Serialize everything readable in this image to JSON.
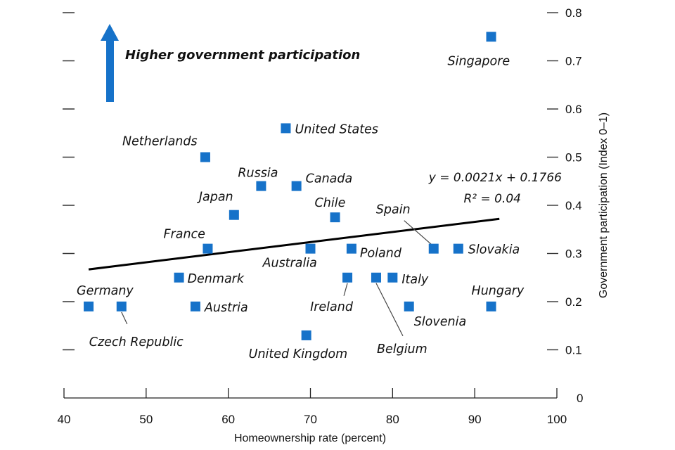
{
  "chart_data": {
    "type": "scatter",
    "title": "",
    "xlabel": "Homeownership rate (percent)",
    "ylabel": "Government participation (Index 0–1)",
    "xlim": [
      40,
      100
    ],
    "ylim": [
      0,
      0.8
    ],
    "x_ticks": [
      40,
      50,
      60,
      70,
      80,
      90,
      100
    ],
    "x_tick_labels": [
      "40",
      "50",
      "60",
      "70",
      "80",
      "90",
      "100"
    ],
    "y_ticks": [
      0,
      0.1,
      0.2,
      0.3,
      0.4,
      0.5,
      0.6,
      0.7,
      0.8
    ],
    "y_tick_labels": [
      "0",
      "0.1",
      "0.2",
      "0.3",
      "0.4",
      "0.5",
      "0.6",
      "0.7",
      "0.8"
    ],
    "y_axis_side": "right",
    "grid": false,
    "marker_color": "#1672c9",
    "arrow_color": "#1672c9",
    "annotation": "Higher government participation",
    "trendline": {
      "slope": 0.0021,
      "intercept": 0.1766,
      "x_range": [
        43,
        93
      ],
      "equation_label": "y = 0.0021x + 0.1766",
      "r2_label": "R² = 0.04"
    },
    "points": [
      {
        "name": "Singapore",
        "x": 92,
        "y": 0.75
      },
      {
        "name": "United States",
        "x": 67,
        "y": 0.56
      },
      {
        "name": "Netherlands",
        "x": 57.2,
        "y": 0.5
      },
      {
        "name": "Russia",
        "x": 64,
        "y": 0.44
      },
      {
        "name": "Canada",
        "x": 68.3,
        "y": 0.44
      },
      {
        "name": "Japan",
        "x": 60.7,
        "y": 0.38
      },
      {
        "name": "Chile",
        "x": 73,
        "y": 0.375
      },
      {
        "name": "France",
        "x": 57.5,
        "y": 0.31
      },
      {
        "name": "Australia",
        "x": 70,
        "y": 0.31
      },
      {
        "name": "Poland",
        "x": 75,
        "y": 0.31
      },
      {
        "name": "Spain",
        "x": 85,
        "y": 0.31
      },
      {
        "name": "Slovakia",
        "x": 88,
        "y": 0.31
      },
      {
        "name": "Denmark",
        "x": 54,
        "y": 0.25
      },
      {
        "name": "Ireland",
        "x": 74.5,
        "y": 0.25
      },
      {
        "name": "Belgium",
        "x": 78,
        "y": 0.25
      },
      {
        "name": "Italy",
        "x": 80,
        "y": 0.25
      },
      {
        "name": "Germany",
        "x": 43,
        "y": 0.19
      },
      {
        "name": "Czech Republic",
        "x": 47,
        "y": 0.19
      },
      {
        "name": "Austria",
        "x": 56,
        "y": 0.19
      },
      {
        "name": "Slovenia",
        "x": 82,
        "y": 0.19
      },
      {
        "name": "Hungary",
        "x": 92,
        "y": 0.19
      },
      {
        "name": "United Kingdom",
        "x": 69.5,
        "y": 0.13
      }
    ]
  }
}
